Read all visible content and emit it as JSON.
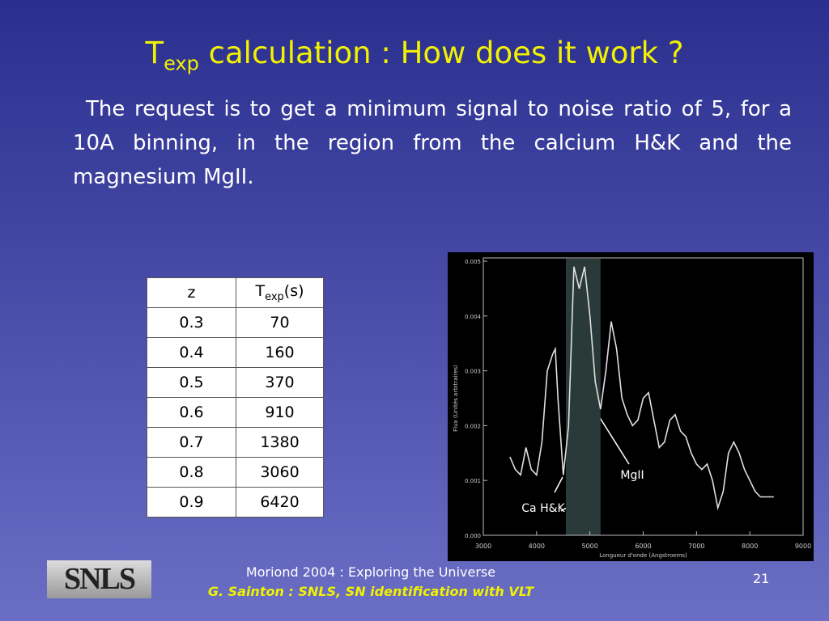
{
  "title": {
    "main": "T",
    "sub": "exp",
    "rest": " calculation : How does it work ?"
  },
  "paragraph": "The request is to get a minimum signal to noise ratio of 5, for a 10A binning, in the region from the calcium H&K and the magnesium MgII.",
  "table": {
    "header": {
      "z": "z",
      "t_main": "T",
      "t_sub": "exp",
      "t_unit": "(s)"
    },
    "rows": [
      [
        "0.3",
        "70"
      ],
      [
        "0.4",
        "160"
      ],
      [
        "0.5",
        "370"
      ],
      [
        "0.6",
        "910"
      ],
      [
        "0.7",
        "1380"
      ],
      [
        "0.8",
        "3060"
      ],
      [
        "0.9",
        "6420"
      ]
    ]
  },
  "spectrum": {
    "type": "line",
    "x_label": "Longueur d'onde (Angstroems)",
    "y_label": "Flux (Unités arbitraires)",
    "xlim": [
      3000,
      9000
    ],
    "ylim": [
      0,
      0.005
    ],
    "xticks": [
      3000,
      4000,
      5000,
      6000,
      7000,
      8000,
      9000
    ],
    "yticks": [
      {
        "value": 0,
        "label": "0.000"
      },
      {
        "value": 0.001,
        "label": "0.001"
      },
      {
        "value": 0.002,
        "label": "0.002"
      },
      {
        "value": 0.003,
        "label": "0.003"
      },
      {
        "value": 0.004,
        "label": "0.004"
      },
      {
        "value": 0.005,
        "label": "0.005"
      }
    ],
    "band": [
      4550,
      5200
    ],
    "color": "#e0e0e0",
    "x": [
      3500,
      3600,
      3700,
      3800,
      3900,
      4000,
      4100,
      4200,
      4300,
      4350,
      4400,
      4500,
      4600,
      4700,
      4800,
      4900,
      5000,
      5100,
      5200,
      5300,
      5400,
      5500,
      5600,
      5700,
      5800,
      5900,
      6000,
      6100,
      6200,
      6300,
      6400,
      6500,
      6600,
      6700,
      6800,
      6900,
      7000,
      7100,
      7200,
      7300,
      7400,
      7500,
      7600,
      7700,
      7800,
      7900,
      8000,
      8100,
      8200,
      8300,
      8400,
      8450
    ],
    "values": [
      0.00143,
      0.0012,
      0.0011,
      0.0016,
      0.0012,
      0.0011,
      0.0017,
      0.003,
      0.0033,
      0.0034,
      0.0025,
      0.0011,
      0.002,
      0.0049,
      0.0045,
      0.0049,
      0.004,
      0.0028,
      0.0023,
      0.003,
      0.0039,
      0.0034,
      0.0025,
      0.0022,
      0.002,
      0.0021,
      0.0025,
      0.0026,
      0.0021,
      0.0016,
      0.0017,
      0.0021,
      0.0022,
      0.0019,
      0.0018,
      0.0015,
      0.0013,
      0.0012,
      0.0013,
      0.001,
      0.0005,
      0.0008,
      0.0015,
      0.0017,
      0.0015,
      0.0012,
      0.001,
      0.0008,
      0.0007,
      0.0007,
      0.0007,
      0.0007
    ],
    "annotations": [
      "MgII",
      "Ca H&K"
    ]
  },
  "footer": {
    "logo": "SNLS",
    "line1": "Moriond 2004 : Exploring the Universe",
    "line2": "G. Sainton : SNLS, SN identification with VLT",
    "page": "21"
  }
}
